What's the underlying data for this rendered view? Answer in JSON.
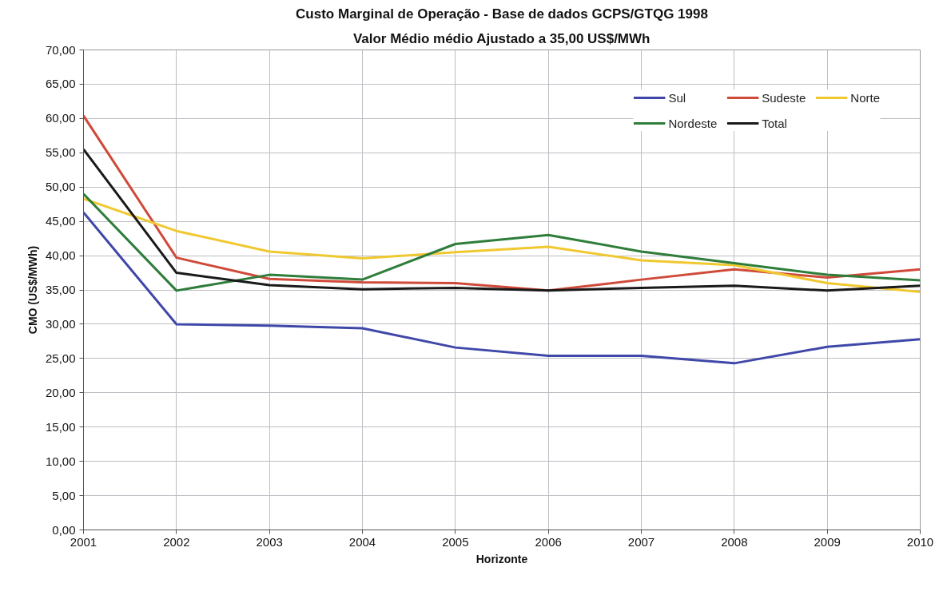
{
  "chart_data": {
    "type": "line",
    "title": "Custo Marginal de Operação - Base de dados GCPS/GTQG 1998",
    "subtitle": "Valor Médio médio Ajustado a 35,00 US$/MWh",
    "xlabel": "Horizonte",
    "ylabel": "CMO (US$/MWh)",
    "x": [
      2001,
      2002,
      2003,
      2004,
      2005,
      2006,
      2007,
      2008,
      2009,
      2010
    ],
    "xlim": [
      2001,
      2010
    ],
    "xticks": [
      2001,
      2002,
      2003,
      2004,
      2005,
      2006,
      2007,
      2008,
      2009,
      2010
    ],
    "ylim": [
      0,
      70
    ],
    "yticks": [
      {
        "value": 0,
        "label": "0,00"
      },
      {
        "value": 5,
        "label": "5,00"
      },
      {
        "value": 10,
        "label": "10,00"
      },
      {
        "value": 15,
        "label": "15,00"
      },
      {
        "value": 20,
        "label": "20,00"
      },
      {
        "value": 25,
        "label": "25,00"
      },
      {
        "value": 30,
        "label": "30,00"
      },
      {
        "value": 35,
        "label": "35,00"
      },
      {
        "value": 40,
        "label": "40,00"
      },
      {
        "value": 45,
        "label": "45,00"
      },
      {
        "value": 50,
        "label": "50,00"
      },
      {
        "value": 55,
        "label": "55,00"
      },
      {
        "value": 60,
        "label": "60,00"
      },
      {
        "value": 65,
        "label": "65,00"
      },
      {
        "value": 70,
        "label": "70,00"
      }
    ],
    "series": [
      {
        "name": "Sul",
        "color": "#3f48a8",
        "values": [
          46.3,
          30.0,
          29.8,
          29.4,
          26.6,
          25.4,
          25.4,
          24.3,
          26.7,
          27.8
        ]
      },
      {
        "name": "Sudeste",
        "color": "#d04a3a",
        "values": [
          60.4,
          39.7,
          36.6,
          36.1,
          36.0,
          34.9,
          36.5,
          38.0,
          36.8,
          38.0
        ]
      },
      {
        "name": "Norte",
        "color": "#f0c830",
        "values": [
          48.3,
          43.6,
          40.6,
          39.6,
          40.5,
          41.3,
          39.3,
          38.6,
          36.0,
          34.7
        ]
      },
      {
        "name": "Nordeste",
        "color": "#2e7d3a",
        "values": [
          49.0,
          34.9,
          37.2,
          36.5,
          41.7,
          43.0,
          40.6,
          38.9,
          37.2,
          36.4
        ]
      },
      {
        "name": "Total",
        "color": "#1a1a1a",
        "values": [
          55.5,
          37.5,
          35.7,
          35.1,
          35.3,
          34.9,
          35.3,
          35.6,
          34.9,
          35.6
        ]
      }
    ],
    "grid": true,
    "legend": "top right",
    "line_style": "solid"
  }
}
